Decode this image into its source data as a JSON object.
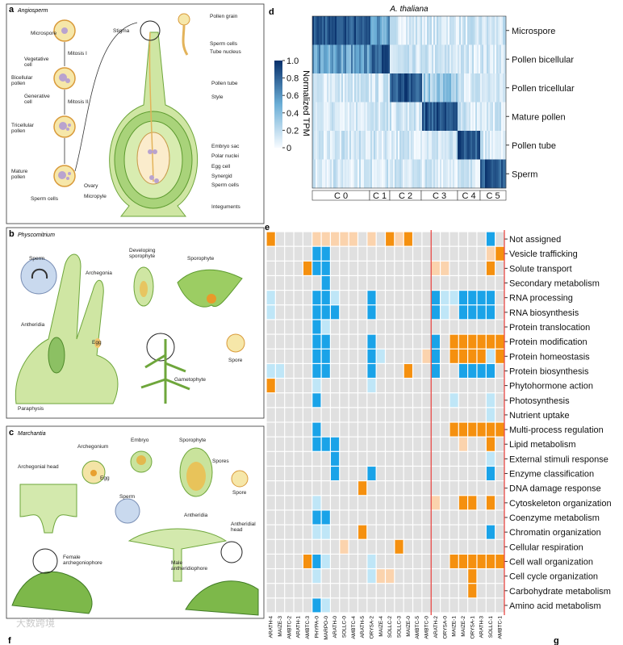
{
  "panel_a": {
    "label": "a",
    "title": "Angiosperm",
    "texts": [
      "Microspore",
      "Mitosis I",
      "Vegetative",
      "cell",
      "Bicellular",
      "pollen",
      "Generative",
      "cell",
      "Mitosis II",
      "Tricellular",
      "pollen",
      "Mature",
      "pollen",
      "Sperm cells",
      "Stigma",
      "Pollen grain",
      "Sperm cells",
      "Tube nucleus",
      "Pollen tube",
      "Style",
      "Embryo sac",
      "Polar nuclei",
      "Egg cell",
      "Synergid",
      "Sperm cells",
      "Ovary",
      "Micropyle",
      "Integuments"
    ]
  },
  "panel_b": {
    "label": "b",
    "title": "Physcomitrium",
    "texts": [
      "Sperm",
      "Archegonia",
      "Developing",
      "sporophyte",
      "Sporophyte",
      "Antheridia",
      "Egg",
      "Spore",
      "Gametophyte",
      "Paraphysis"
    ]
  },
  "panel_c": {
    "label": "c",
    "title": "Marchantia",
    "texts": [
      "Archegonium",
      "Embryo",
      "Sporophyte",
      "Spores",
      "Spore",
      "Archegonial head",
      "Egg",
      "Sperm",
      "Antheridia",
      "Antheridial",
      "head",
      "Female",
      "archegoniophore",
      "Male",
      "antheridiophore"
    ]
  },
  "panel_d": {
    "label": "d",
    "title": "A. thaliana",
    "rows": [
      "Microspore",
      "Pollen bicellular",
      "Pollen tricellular",
      "Mature pollen",
      "Pollen tube",
      "Sperm"
    ],
    "clusters": [
      "C 0",
      "C 1",
      "C 2",
      "C 3",
      "C 4",
      "C 5"
    ],
    "colorbar": {
      "label": "Normalized TPM",
      "lim": [
        0,
        1.0
      ],
      "ticks": [
        {
          "value": 1.0,
          "label": "1.0"
        },
        0.8,
        0.6,
        0.4,
        0.2,
        0
      ]
    }
  },
  "panel_e": {
    "label": "e",
    "rows": [
      "Not assigned",
      "Vesicle trafficking",
      "Solute transport",
      "Secondary metabolism",
      "RNA processing",
      "RNA biosynthesis",
      "Protein translocation",
      "Protein modification",
      "Protein homeostasis",
      "Protein biosynthesis",
      "Phytohormone action",
      "Photosynthesis",
      "Nutrient uptake",
      "Multi-process regulation",
      "Lipid metabolism",
      "External stimuli response",
      "Enzyme classification",
      "DNA damage response",
      "Cytoskeleton organization",
      "Coenzyme metabolism",
      "Chromatin organization",
      "Cellular respiration",
      "Cell wall organization",
      "Cell cycle organization",
      "Carbohydrate metabolism",
      "Amino acid metabolism"
    ],
    "columns": [
      "ARATH-4",
      "MAIZE-3",
      "AMBTC-2",
      "ARATH-1",
      "AMBTC-3",
      "PHYPA-0",
      "MARPO-0",
      "ARATH-0",
      "SOLLC-0",
      "AMBTC-4",
      "ARATH-5",
      "ORYSA-2",
      "MAIZE-4",
      "SOLLC-2",
      "SOLLC-3",
      "MAIZE-0",
      "AMBTC-5",
      "AMBTC-0",
      "ARATH-2",
      "ORYSA-0",
      "MAIZE-1",
      "MAIZE-2",
      "ORYSA-1",
      "ARATH-3",
      "SOLLC-1",
      "AMBTC-1"
    ],
    "palette": [
      "#e0e0e0",
      "#f5900f",
      "#fbd3ad",
      "#1aa3e8",
      "#bfe6f7"
    ],
    "cells": [
      "10000222220201210000000030",
      "00000330000000000000000021",
      "00001330000000000022000010",
      "00000030000000000000000000",
      "40000334000300000034433330",
      "40000333000300000034033330",
      "00000340000000000000000000",
      "00000330000300000030111111",
      "00000330000340000230111141",
      "44000330000300010030033330",
      "10000400000400000000000000",
      "00000300000000000000400040",
      "00000000000000000000000040",
      "00000300000000000000111111",
      "00000333000000000000020010",
      "00000003000000000000000040",
      "00000003000300000000000030",
      "00000000001000000000000000",
      "00000400000000000020011010",
      "00000330000000000000000000",
      "00000440001000000000000030",
      "00000000200000100000000000",
      "00001340000400000000111111",
      "00000400000422000000001000",
      "00000000000000000000001000",
      "00000340000000000000000000"
    ]
  },
  "footer": {
    "f": "f",
    "g": "g",
    "watermark": "大数跨境"
  }
}
